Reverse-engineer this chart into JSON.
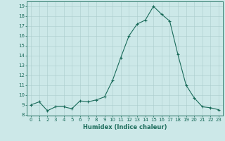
{
  "x": [
    0,
    1,
    2,
    3,
    4,
    5,
    6,
    7,
    8,
    9,
    10,
    11,
    12,
    13,
    14,
    15,
    16,
    17,
    18,
    19,
    20,
    21,
    22,
    23
  ],
  "y": [
    9.0,
    9.3,
    8.4,
    8.8,
    8.8,
    8.6,
    9.4,
    9.3,
    9.5,
    9.8,
    11.5,
    13.8,
    16.0,
    17.2,
    17.6,
    19.0,
    18.2,
    17.5,
    14.1,
    11.0,
    9.7,
    8.8,
    8.7,
    8.5
  ],
  "xlabel": "Humidex (Indice chaleur)",
  "ylim_min": 7.9,
  "ylim_max": 19.5,
  "xlim_min": -0.5,
  "xlim_max": 23.5,
  "yticks": [
    8,
    9,
    10,
    11,
    12,
    13,
    14,
    15,
    16,
    17,
    18,
    19
  ],
  "xticks": [
    0,
    1,
    2,
    3,
    4,
    5,
    6,
    7,
    8,
    9,
    10,
    11,
    12,
    13,
    14,
    15,
    16,
    17,
    18,
    19,
    20,
    21,
    22,
    23
  ],
  "line_color": "#1a6b5a",
  "marker_color": "#1a6b5a",
  "bg_color": "#cce8e8",
  "grid_color": "#aacccc",
  "xlabel_color": "#1a6b5a",
  "tick_color": "#1a6b5a",
  "tick_fontsize": 5.0,
  "xlabel_fontsize": 6.0,
  "linewidth": 0.8,
  "markersize": 3.0
}
